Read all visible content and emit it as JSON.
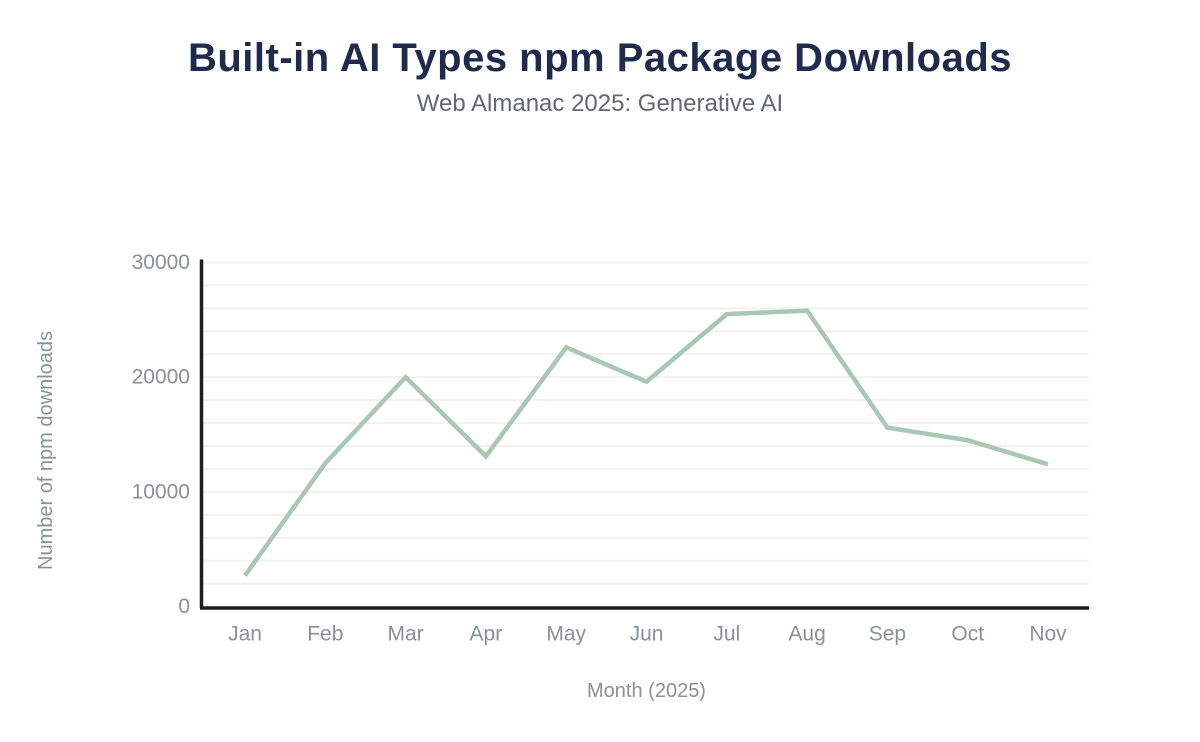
{
  "header": {
    "title": "Built-in AI Types npm Package Downloads",
    "subtitle": "Web Almanac 2025: Generative AI"
  },
  "chart_data": {
    "type": "line",
    "title": "Built-in AI Types npm Package Downloads",
    "subtitle": "Web Almanac 2025: Generative AI",
    "xlabel": "Month (2025)",
    "ylabel": "Number of npm downloads",
    "categories": [
      "Jan",
      "Feb",
      "Mar",
      "Apr",
      "May",
      "Jun",
      "Jul",
      "Aug",
      "Sep",
      "Oct",
      "Nov"
    ],
    "series": [
      {
        "name": "npm downloads",
        "values": [
          2700,
          12500,
          20000,
          13100,
          22600,
          19600,
          25500,
          25800,
          15600,
          14500,
          12400
        ]
      }
    ],
    "ylim": [
      0,
      30000
    ],
    "yticks": [
      0,
      10000,
      20000,
      30000
    ],
    "grid": "horizontal",
    "grid_step": 2000,
    "legend_position": "none",
    "colors": {
      "line": "#a8c8b5",
      "axis": "#1f1f1f",
      "grid": "#f1f1f1",
      "tick_label": "#8a9096",
      "axis_title": "#8a9096",
      "title": "#1e2b4c",
      "subtitle": "#60696f",
      "background": "#ffffff"
    }
  }
}
